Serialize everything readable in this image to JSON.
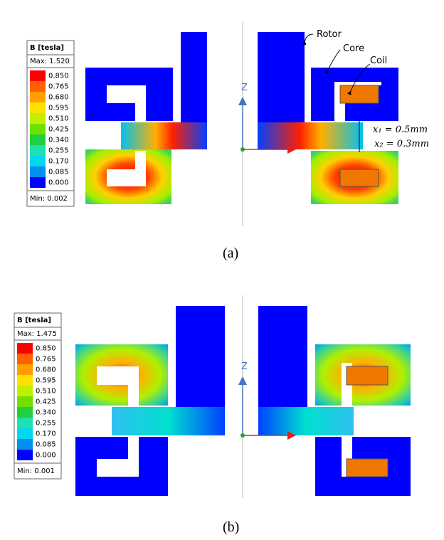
{
  "panels": [
    {
      "legend": {
        "title": "B [tesla]",
        "max": "Max: 1.520",
        "min": "Min: 0.002",
        "scale": [
          "0.850",
          "0.765",
          "0.680",
          "0.595",
          "0.510",
          "0.425",
          "0.340",
          "0.255",
          "0.170",
          "0.085",
          "0.000"
        ]
      },
      "axis_label": "Z",
      "caption": "(a)",
      "annotations": {
        "rotor": "Rotor",
        "core": "Core",
        "coil": "Coil",
        "x1": "x₁ = 0.5mm",
        "x2": "x₂ = 0.3mm"
      }
    },
    {
      "legend": {
        "title": "B [tesla]",
        "max": "Max: 1.475",
        "min": "Min: 0.001",
        "scale": [
          "0.850",
          "0.765",
          "0.680",
          "0.595",
          "0.510",
          "0.425",
          "0.340",
          "0.255",
          "0.170",
          "0.085",
          "0.000"
        ]
      },
      "axis_label": "Z",
      "caption": "(b)"
    }
  ]
}
